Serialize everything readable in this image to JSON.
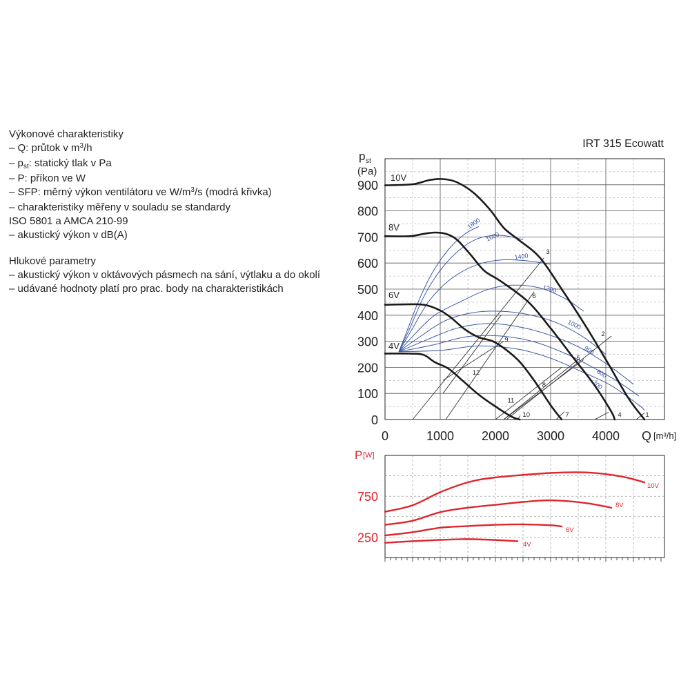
{
  "legend": {
    "heading1": "Výkonové charakteristiky",
    "items1": [
      {
        "pre": "– Q: průtok v m",
        "sup": "3",
        "post": "/h"
      },
      {
        "pre": "– p",
        "sub": "st",
        "post": ": statický tlak v Pa"
      },
      {
        "pre": "– P: příkon ve W"
      },
      {
        "pre": "– SFP: měrný výkon ventilátoru ve W/m",
        "sup": "3",
        "post": "/s (modrá křivka)"
      },
      {
        "pre": "– charakteristiky měřeny v souladu se standardy"
      },
      {
        "pre": "   ISO 5801 a AMCA 210-99"
      },
      {
        "pre": "– akustický výkon v dB(A)"
      }
    ],
    "heading2": "Hlukové parametry",
    "items2": [
      {
        "pre": "– akustický výkon v oktávových pásmech na sání, výtlaku a do okolí"
      },
      {
        "pre": "– udávané hodnoty platí pro prac. body na charakteristikách"
      }
    ]
  },
  "chart_data": [
    {
      "type": "line",
      "title": "IRT 315 Ecowatt",
      "ylabel_main": "p",
      "ylabel_sub": "st",
      "ylabel_unit": "(Pa)",
      "xlabel_pre": "Q",
      "xlabel_unit": "[m³/h]",
      "xlim": [
        0,
        5000
      ],
      "ylim": [
        0,
        1000
      ],
      "xticks": [
        0,
        1000,
        2000,
        3000,
        4000
      ],
      "yticks": [
        0,
        100,
        200,
        300,
        400,
        500,
        600,
        700,
        800,
        900
      ],
      "grid": true,
      "colors": {
        "fan": "#1a1a1a",
        "sfp": "#3d58a4",
        "system": "#333333",
        "grid": "#555555"
      },
      "fan_curves": [
        {
          "name": "10V",
          "points": [
            [
              0,
              898
            ],
            [
              500,
              902
            ],
            [
              800,
              918
            ],
            [
              1050,
              922
            ],
            [
              1300,
              910
            ],
            [
              1600,
              870
            ],
            [
              1900,
              805
            ],
            [
              2150,
              735
            ],
            [
              2400,
              692
            ],
            [
              2800,
              622
            ],
            [
              3200,
              500
            ],
            [
              3600,
              370
            ],
            [
              4000,
              230
            ],
            [
              4400,
              85
            ],
            [
              4700,
              0
            ]
          ]
        },
        {
          "name": "8V",
          "points": [
            [
              0,
              703
            ],
            [
              450,
              703
            ],
            [
              700,
              712
            ],
            [
              900,
              717
            ],
            [
              1100,
              712
            ],
            [
              1300,
              690
            ],
            [
              1550,
              632
            ],
            [
              1800,
              570
            ],
            [
              2100,
              530
            ],
            [
              2600,
              450
            ],
            [
              3000,
              350
            ],
            [
              3400,
              240
            ],
            [
              3800,
              130
            ],
            [
              4100,
              30
            ],
            [
              4160,
              0
            ]
          ]
        },
        {
          "name": "6V",
          "points": [
            [
              0,
              440
            ],
            [
              500,
              442
            ],
            [
              750,
              438
            ],
            [
              1000,
              418
            ],
            [
              1200,
              390
            ],
            [
              1450,
              345
            ],
            [
              1700,
              315
            ],
            [
              2000,
              295
            ],
            [
              2400,
              230
            ],
            [
              2700,
              150
            ],
            [
              3000,
              55
            ],
            [
              3200,
              0
            ]
          ]
        },
        {
          "name": "4V",
          "points": [
            [
              0,
              253
            ],
            [
              450,
              253
            ],
            [
              700,
              248
            ],
            [
              900,
              220
            ],
            [
              1150,
              195
            ],
            [
              1400,
              150
            ],
            [
              1700,
              95
            ],
            [
              2000,
              50
            ],
            [
              2300,
              10
            ],
            [
              2440,
              0
            ]
          ]
        }
      ],
      "sfp_curves": [
        {
          "name": "1800",
          "points": [
            [
              250,
              260
            ],
            [
              400,
              340
            ],
            [
              600,
              450
            ],
            [
              850,
              560
            ],
            [
              1150,
              652
            ],
            [
              1450,
              712
            ],
            [
              1700,
              740
            ]
          ]
        },
        {
          "name": "1600",
          "points": [
            [
              250,
              260
            ],
            [
              450,
              350
            ],
            [
              700,
              470
            ],
            [
              1000,
              572
            ],
            [
              1350,
              650
            ],
            [
              1700,
              695
            ],
            [
              2100,
              706
            ],
            [
              2500,
              690
            ]
          ]
        },
        {
          "name": "1400",
          "points": [
            [
              250,
              260
            ],
            [
              500,
              350
            ],
            [
              800,
              455
            ],
            [
              1200,
              540
            ],
            [
              1650,
              592
            ],
            [
              2100,
              612
            ],
            [
              2600,
              608
            ],
            [
              3000,
              595
            ]
          ]
        },
        {
          "name": "1200",
          "points": [
            [
              250,
              260
            ],
            [
              550,
              330
            ],
            [
              900,
              400
            ],
            [
              1350,
              450
            ],
            [
              1850,
              498
            ],
            [
              2300,
              515
            ],
            [
              2800,
              505
            ],
            [
              3250,
              465
            ],
            [
              3600,
              415
            ]
          ]
        },
        {
          "name": "1000",
          "points": [
            [
              250,
              260
            ],
            [
              650,
              320
            ],
            [
              1100,
              380
            ],
            [
              1600,
              410
            ],
            [
              2100,
              415
            ],
            [
              2600,
              402
            ],
            [
              3100,
              372
            ],
            [
              3600,
              315
            ],
            [
              4000,
              250
            ]
          ]
        },
        {
          "name": "900",
          "points": [
            [
              250,
              260
            ],
            [
              750,
              305
            ],
            [
              1300,
              350
            ],
            [
              1900,
              368
            ],
            [
              2500,
              352
            ],
            [
              3100,
              315
            ],
            [
              3600,
              268
            ],
            [
              4100,
              200
            ],
            [
              4500,
              135
            ]
          ]
        },
        {
          "name": "800",
          "points": [
            [
              250,
              260
            ],
            [
              850,
              285
            ],
            [
              1500,
              318
            ],
            [
              2100,
              320
            ],
            [
              2700,
              298
            ],
            [
              3300,
              250
            ],
            [
              3800,
              196
            ],
            [
              4200,
              148
            ],
            [
              4600,
              90
            ]
          ]
        },
        {
          "name": "700",
          "points": [
            [
              250,
              260
            ],
            [
              1000,
              265
            ],
            [
              1700,
              282
            ],
            [
              2400,
              270
            ],
            [
              3000,
              235
            ],
            [
              3600,
              180
            ],
            [
              4100,
              130
            ],
            [
              4600,
              55
            ],
            [
              4700,
              35
            ]
          ]
        }
      ],
      "system_curves": [
        {
          "name": "3",
          "points": [
            [
              500,
              0
            ],
            [
              2880,
              620
            ]
          ]
        },
        {
          "name": "2",
          "points": [
            [
              2200,
              0
            ],
            [
              4100,
              320
            ]
          ]
        },
        {
          "name": "1",
          "points": [
            [
              4550,
              0
            ],
            [
              4700,
              25
            ]
          ]
        },
        {
          "name": "6",
          "points": [
            [
              1100,
              0
            ],
            [
              2700,
              490
            ]
          ]
        },
        {
          "name": "5",
          "points": [
            [
              2150,
              0
            ],
            [
              3500,
              230
            ]
          ]
        },
        {
          "name": "4",
          "points": [
            [
              3800,
              0
            ],
            [
              4050,
              28
            ]
          ]
        },
        {
          "name": "9",
          "points": [
            [
              1050,
              150
            ],
            [
              2150,
              300
            ]
          ]
        },
        {
          "name": "8",
          "points": [
            [
              2150,
              0
            ],
            [
              3600,
              230
            ]
          ]
        },
        {
          "name": "7",
          "points": [
            [
              3100,
              0
            ],
            [
              3250,
              30
            ]
          ]
        },
        {
          "name": "12",
          "points": [
            [
              1050,
              100
            ],
            [
              2100,
              400
            ]
          ]
        },
        {
          "name": "11",
          "points": [
            [
              2000,
              0
            ],
            [
              3200,
              200
            ]
          ]
        },
        {
          "name": "10",
          "points": [
            [
              2400,
              0
            ],
            [
              2450,
              15
            ]
          ]
        }
      ],
      "point_labels": [
        {
          "text": "3",
          "x": 2950,
          "y": 635
        },
        {
          "text": "6",
          "x": 2700,
          "y": 465
        },
        {
          "text": "9",
          "x": 2200,
          "y": 298
        },
        {
          "text": "12",
          "x": 1650,
          "y": 172
        },
        {
          "text": "2",
          "x": 3950,
          "y": 320
        },
        {
          "text": "5",
          "x": 3500,
          "y": 228
        },
        {
          "text": "8",
          "x": 2880,
          "y": 125
        },
        {
          "text": "11",
          "x": 2280,
          "y": 65
        },
        {
          "text": "1",
          "x": 4750,
          "y": 10
        },
        {
          "text": "4",
          "x": 4250,
          "y": 10
        },
        {
          "text": "7",
          "x": 3300,
          "y": 10
        },
        {
          "text": "10",
          "x": 2560,
          "y": 10
        }
      ]
    },
    {
      "type": "line",
      "ylabel_main": "P",
      "ylabel_unit": "[W]",
      "xlim": [
        0,
        5000
      ],
      "ylim": [
        0,
        1250
      ],
      "yticks_labeled": [
        250,
        750
      ],
      "grid": true,
      "color": "#e0242b",
      "series": [
        {
          "name": "10V",
          "points": [
            [
              0,
              560
            ],
            [
              500,
              640
            ],
            [
              1000,
              800
            ],
            [
              1500,
              920
            ],
            [
              2000,
              980
            ],
            [
              3000,
              1035
            ],
            [
              3700,
              1040
            ],
            [
              4300,
              990
            ],
            [
              4700,
              920
            ]
          ]
        },
        {
          "name": "8V",
          "points": [
            [
              0,
              400
            ],
            [
              500,
              450
            ],
            [
              1000,
              555
            ],
            [
              1500,
              610
            ],
            [
              2000,
              645
            ],
            [
              2500,
              680
            ],
            [
              3000,
              700
            ],
            [
              3600,
              670
            ],
            [
              4100,
              610
            ]
          ]
        },
        {
          "name": "6V",
          "points": [
            [
              0,
              270
            ],
            [
              500,
              310
            ],
            [
              1000,
              365
            ],
            [
              1500,
              385
            ],
            [
              2000,
              400
            ],
            [
              2500,
              405
            ],
            [
              3000,
              395
            ],
            [
              3200,
              380
            ]
          ]
        },
        {
          "name": "4V",
          "points": [
            [
              0,
              180
            ],
            [
              500,
              200
            ],
            [
              1000,
              215
            ],
            [
              1400,
              225
            ],
            [
              1800,
              220
            ],
            [
              2400,
              200
            ]
          ]
        }
      ]
    }
  ]
}
